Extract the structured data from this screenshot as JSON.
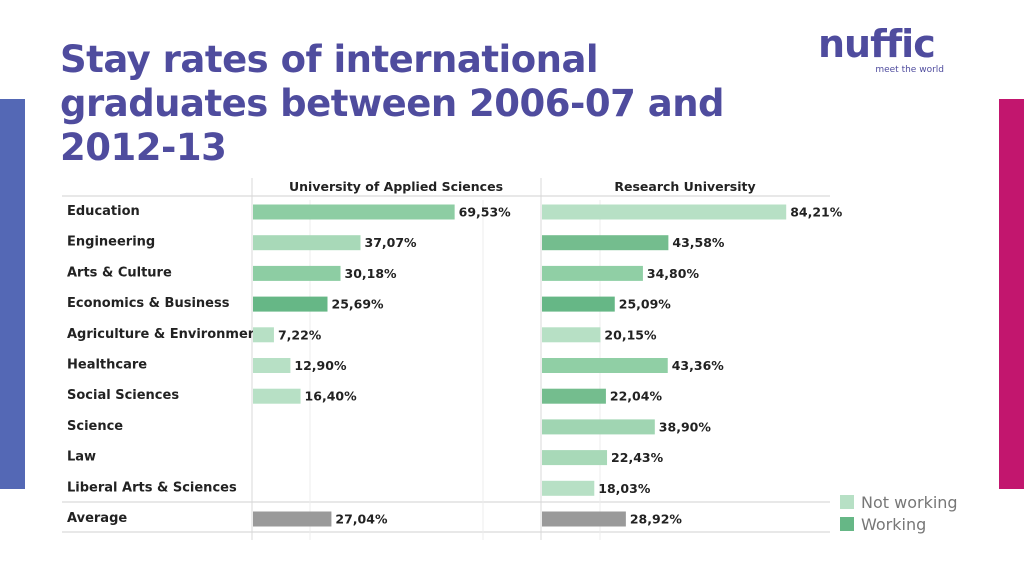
{
  "slide": {
    "title": "Stay rates of international graduates between 2006-07 and 2012-13",
    "logo_text": "nuffic",
    "logo_tagline": "meet the world"
  },
  "colors": {
    "left_accent": "#5468b5",
    "right_accent": "#c2166e",
    "not_working": "#b7e0c5",
    "working": "#66b786",
    "mid_green": "#90cfa5",
    "average": "#9a9a9a"
  },
  "chart_data": {
    "type": "bar",
    "orientation": "horizontal",
    "categories": [
      "Education",
      "Engineering",
      "Arts & Culture",
      "Economics & Business",
      "Agriculture & Environment",
      "Healthcare",
      "Social Sciences",
      "Science",
      "Law",
      "Liberal Arts & Sciences",
      "Average"
    ],
    "panels": [
      {
        "name": "University of Applied Sciences",
        "values": [
          69.53,
          37.07,
          30.18,
          25.69,
          7.22,
          12.9,
          16.4,
          null,
          null,
          null,
          27.04
        ],
        "labels": [
          "69,53%",
          "37,07%",
          "30,18%",
          "25,69%",
          "7,22%",
          "12,90%",
          "16,40%",
          "",
          "",
          "",
          "27,04%"
        ],
        "colors": [
          "#8dcda3",
          "#a8d9b8",
          "#8dcda3",
          "#66b786",
          "#b7e0c5",
          "#b7e0c5",
          "#b7e0c5",
          "",
          "",
          "",
          "#9a9a9a"
        ]
      },
      {
        "name": "Research University",
        "values": [
          84.21,
          43.58,
          34.8,
          25.09,
          20.15,
          43.36,
          22.04,
          38.9,
          22.43,
          18.03,
          28.92
        ],
        "labels": [
          "84,21%",
          "43,58%",
          "34,80%",
          "25,09%",
          "20,15%",
          "43,36%",
          "22,04%",
          "38,90%",
          "22,43%",
          "18,03%",
          "28,92%"
        ],
        "colors": [
          "#b7e0c5",
          "#74bd8e",
          "#90cfa5",
          "#66b786",
          "#b7e0c5",
          "#90cfa5",
          "#74bd8e",
          "#a0d5b2",
          "#a8d9b8",
          "#b7e0c5",
          "#9a9a9a"
        ]
      }
    ],
    "legend": [
      {
        "label": "Not working",
        "color": "#b7e0c5"
      },
      {
        "label": "Working",
        "color": "#66b786"
      }
    ],
    "legend_position": "bottom-right",
    "xlim": [
      0,
      100
    ]
  }
}
